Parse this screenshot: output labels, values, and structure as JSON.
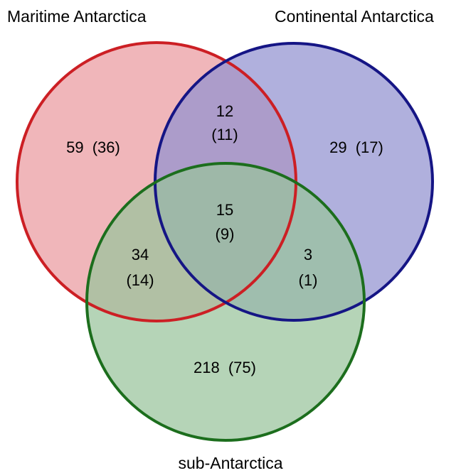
{
  "diagram": {
    "type": "venn",
    "sets": [
      {
        "id": "maritime",
        "label": "Maritime Antarctica",
        "fill": "#ea9a9f",
        "stroke": "#cc1f24"
      },
      {
        "id": "continental",
        "label": "Continental Antarctica",
        "fill": "#9292d0",
        "stroke": "#151585"
      },
      {
        "id": "sub",
        "label": "sub-Antarctica",
        "fill": "#98c49b",
        "stroke": "#1c6e1d"
      }
    ],
    "regions": {
      "maritime_only": {
        "count": "59",
        "paren": "(36)"
      },
      "continental_only": {
        "count": "29",
        "paren": "(17)"
      },
      "maritime_continental": {
        "count": "12",
        "paren": "(11)"
      },
      "all_three": {
        "count": "15",
        "paren": "(9)"
      },
      "maritime_sub": {
        "count": "34",
        "paren": "(14)"
      },
      "continental_sub": {
        "count": "3",
        "paren": "(1)"
      },
      "sub_only": {
        "count": "218",
        "paren": "(75)"
      }
    }
  }
}
